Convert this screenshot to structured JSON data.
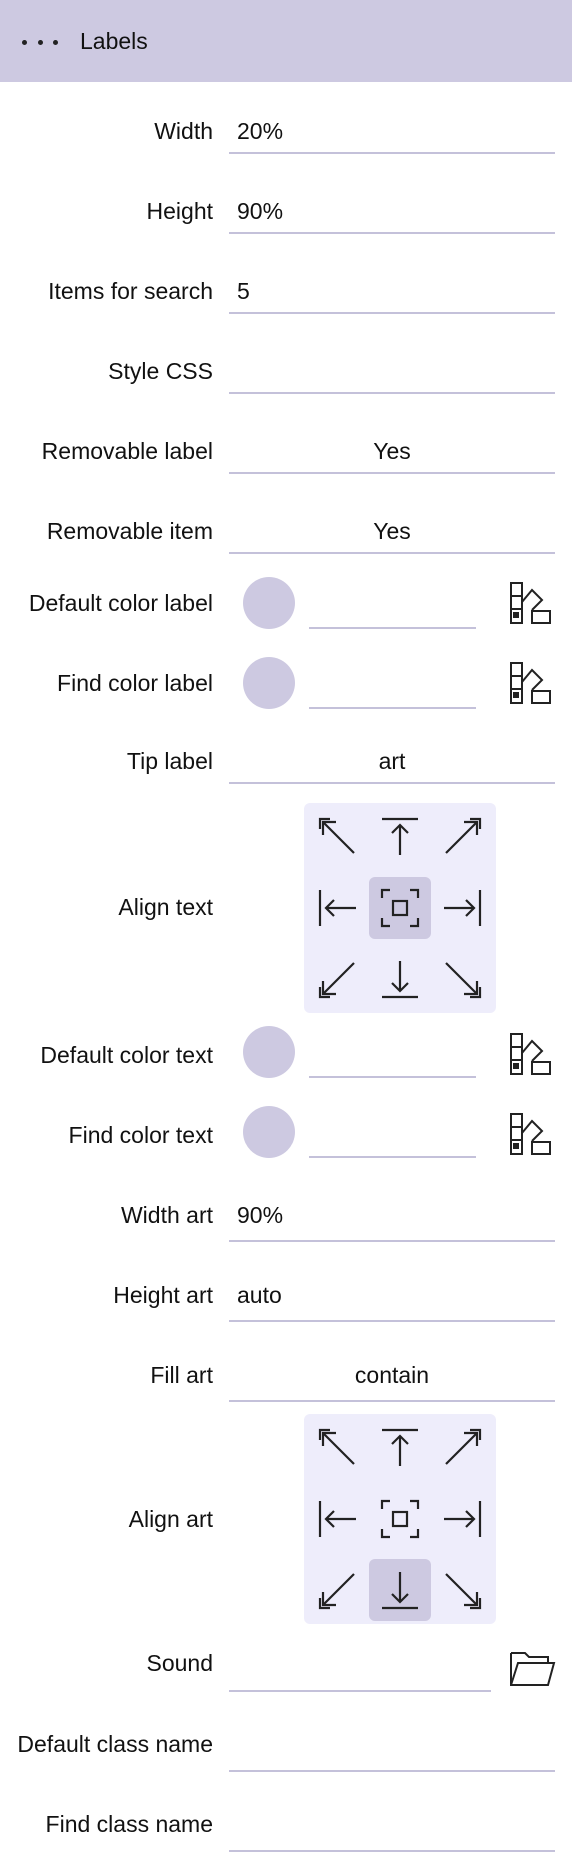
{
  "header": {
    "title": "Labels",
    "menu_icon": "more-horizontal-icon"
  },
  "colors": {
    "accent": "#cdc9e1",
    "grid_bg": "#eeedfb",
    "underline": "#c4c1da"
  },
  "fields": {
    "width": {
      "label": "Width",
      "value": "20%"
    },
    "height": {
      "label": "Height",
      "value": "90%"
    },
    "items_for_search": {
      "label": "Items for search",
      "value": "5"
    },
    "style_css": {
      "label": "Style CSS",
      "value": ""
    },
    "removable_label": {
      "label": "Removable label",
      "value": "Yes"
    },
    "removable_item": {
      "label": "Removable item",
      "value": "Yes"
    },
    "default_color_label": {
      "label": "Default color label",
      "value": ""
    },
    "find_color_label": {
      "label": "Find color label",
      "value": ""
    },
    "tip_label": {
      "label": "Tip label",
      "value": "art"
    },
    "align_text": {
      "label": "Align text",
      "selected": "center"
    },
    "default_color_text": {
      "label": "Default color text",
      "value": ""
    },
    "find_color_text": {
      "label": "Find color text",
      "value": ""
    },
    "width_art": {
      "label": "Width art",
      "value": "90%"
    },
    "height_art": {
      "label": "Height art",
      "value": "auto"
    },
    "fill_art": {
      "label": "Fill art",
      "value": "contain"
    },
    "align_art": {
      "label": "Align art",
      "selected": "bottom"
    },
    "sound": {
      "label": "Sound",
      "value": ""
    },
    "default_class_name": {
      "label": "Default class name",
      "value": ""
    },
    "find_class_name": {
      "label": "Find class name",
      "value": ""
    }
  },
  "icons": {
    "palette": "palette-icon",
    "folder": "folder-open-icon",
    "align_cells": [
      "top-left",
      "top",
      "top-right",
      "left",
      "center",
      "right",
      "bottom-left",
      "bottom",
      "bottom-right"
    ]
  }
}
